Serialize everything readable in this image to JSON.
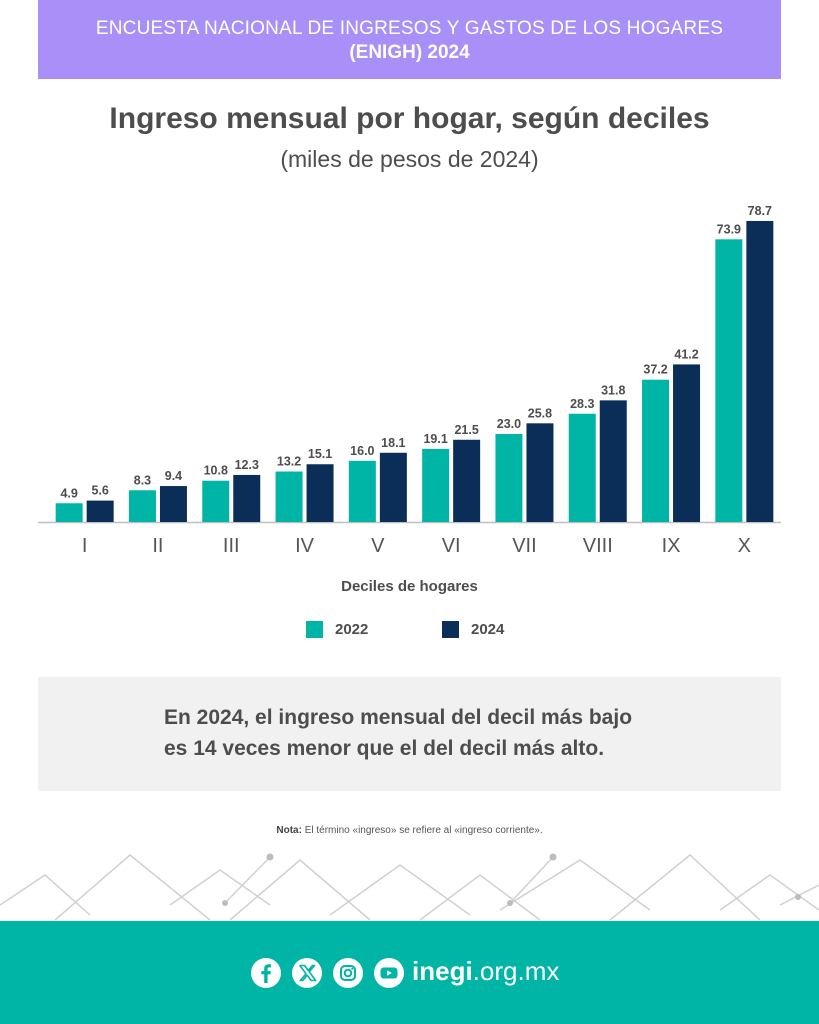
{
  "header": {
    "line1": "ENCUESTA NACIONAL DE INGRESOS Y GASTOS DE LOS HOGARES",
    "line2": "(ENIGH) 2024"
  },
  "colors": {
    "header_bg": "#a990f8",
    "series_2022": "#00b5a6",
    "series_2024": "#0b2e58",
    "footer_bg": "#00b5a6",
    "callout_bg": "#f1f1f1"
  },
  "chart_data": {
    "type": "bar",
    "title": "Ingreso mensual por hogar, según deciles",
    "subtitle": "(miles de pesos de 2024)",
    "xlabel": "Deciles de hogares",
    "ylabel": "",
    "categories": [
      "I",
      "II",
      "III",
      "IV",
      "V",
      "VI",
      "VII",
      "VIII",
      "IX",
      "X"
    ],
    "series": [
      {
        "name": "2022",
        "values": [
          4.9,
          8.3,
          10.8,
          13.2,
          16.0,
          19.1,
          23.0,
          28.3,
          37.2,
          73.9
        ]
      },
      {
        "name": "2024",
        "values": [
          5.6,
          9.4,
          12.3,
          15.1,
          18.1,
          21.5,
          25.8,
          31.8,
          41.2,
          78.7
        ]
      }
    ],
    "ylim": [
      0,
      80
    ],
    "grid": false,
    "legend": "bottom"
  },
  "callout": {
    "line1": "En 2024, el ingreso mensual del decil más bajo",
    "line2": "es 14 veces menor que el del decil más alto."
  },
  "note": {
    "label": "Nota:",
    "text": "El término «ingreso» se refiere al «ingreso corriente»."
  },
  "footer": {
    "site_bold": "inegi",
    "site_rest": ".org.mx",
    "icons": [
      "facebook-icon",
      "x-icon",
      "instagram-icon",
      "youtube-icon"
    ]
  }
}
